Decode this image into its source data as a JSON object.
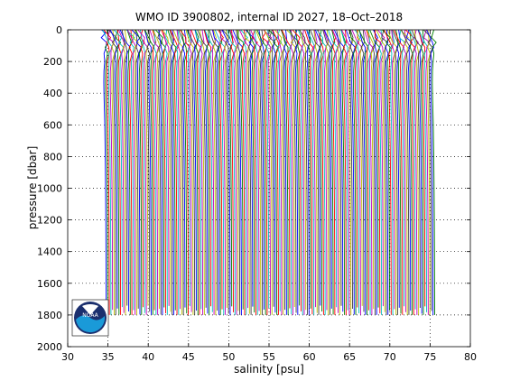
{
  "chart_data": {
    "type": "line",
    "title": "WMO ID 3900802, internal ID 2027, 18–Oct–2018",
    "xlabel": "salinity [psu]",
    "ylabel": "pressure [dbar]",
    "xlim": [
      30,
      80
    ],
    "ylim": [
      0,
      2000
    ],
    "y_reversed": true,
    "xticks": [
      "30",
      "35",
      "40",
      "45",
      "50",
      "55",
      "60",
      "65",
      "70",
      "75",
      "80"
    ],
    "yticks": [
      "0",
      "200",
      "400",
      "600",
      "800",
      "1000",
      "1200",
      "1400",
      "1600",
      "1800",
      "2000"
    ],
    "grid": true,
    "profile_count": 205,
    "profile_spacing": 0.2,
    "first_profile_offset": 0,
    "base_profile": {
      "pressure": [
        0,
        20,
        50,
        80,
        110,
        150,
        200,
        260,
        330,
        400,
        500,
        600,
        700,
        800,
        1000,
        1200,
        1400,
        1600,
        1800
      ],
      "salinity": [
        34.2,
        34.35,
        34.55,
        34.65,
        34.7,
        34.65,
        34.55,
        34.5,
        34.48,
        34.5,
        34.55,
        34.6,
        34.63,
        34.66,
        34.7,
        34.73,
        34.75,
        34.76,
        34.77
      ]
    },
    "series_colors": [
      "#0000ff",
      "#008000",
      "#ff0000",
      "#00bfbf",
      "#bf00bf",
      "#bfbf00",
      "#404040"
    ]
  },
  "logo": {
    "text": "NOAA",
    "colors": {
      "navy": "#1b2f6e",
      "sky": "#1a9ad8",
      "white": "#ffffff"
    }
  }
}
